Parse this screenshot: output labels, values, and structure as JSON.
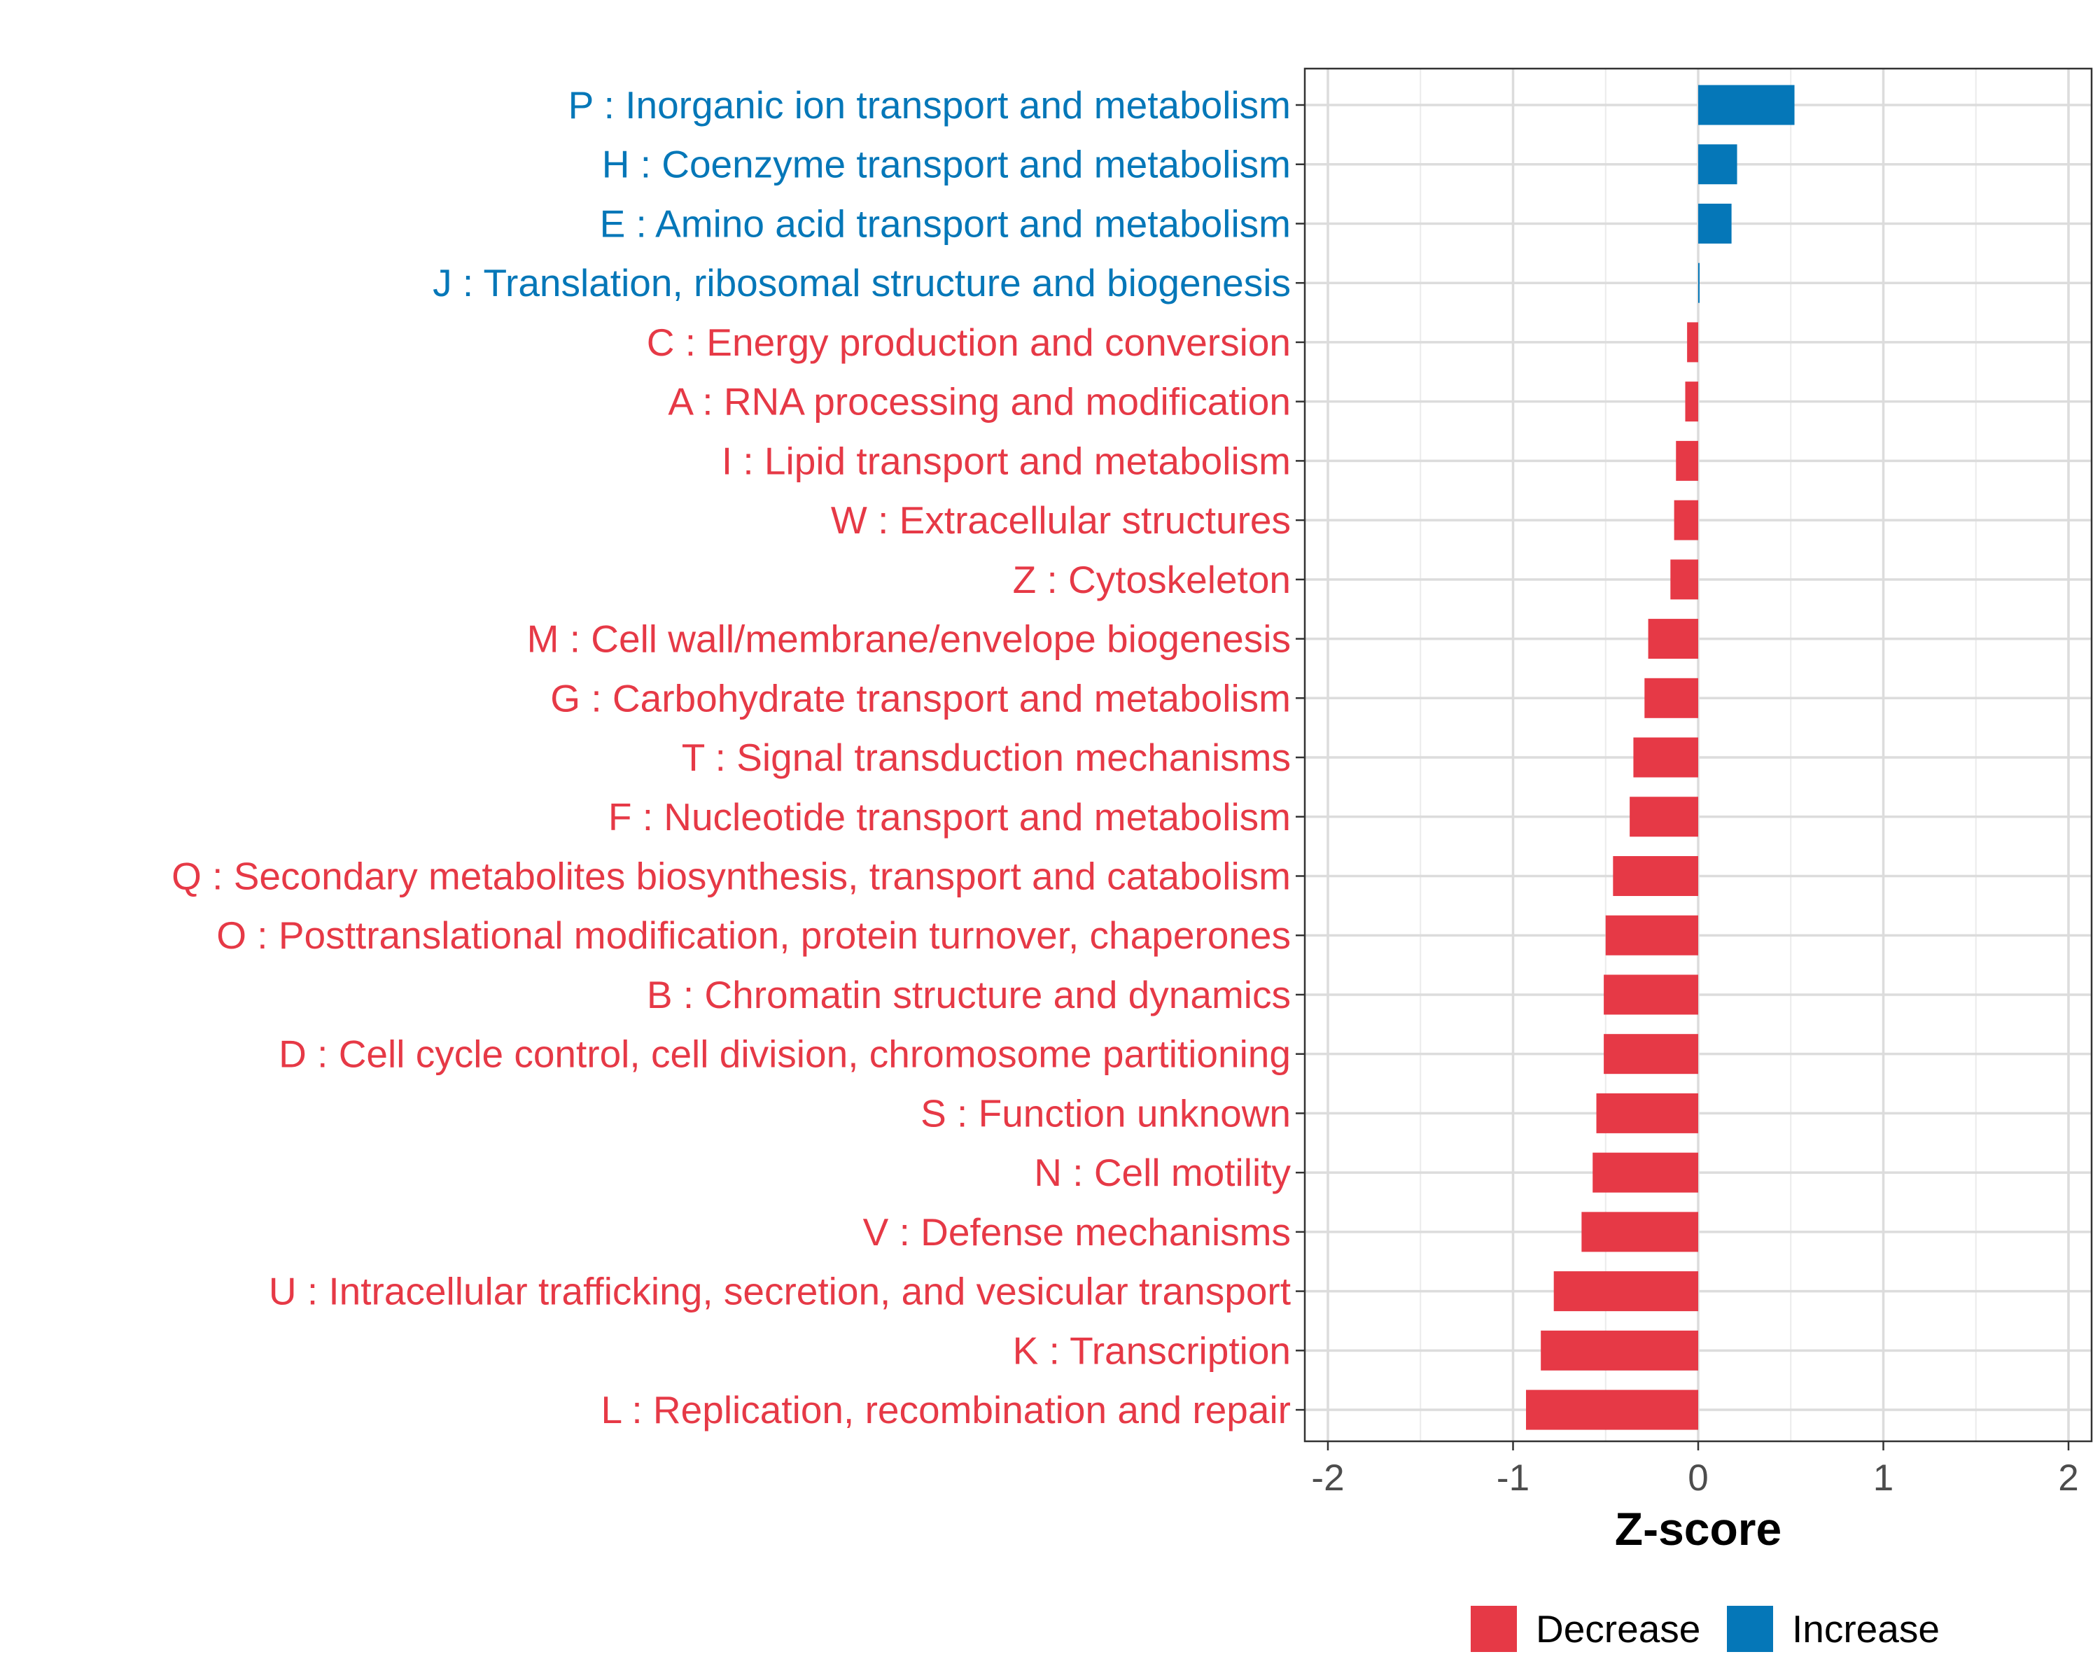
{
  "chart_data": {
    "type": "bar",
    "orientation": "horizontal",
    "title": "",
    "xlabel": "Z-score",
    "ylabel": "",
    "xlim": [
      -2.1,
      2.1
    ],
    "xticks": [
      -2,
      -1,
      0,
      1,
      2
    ],
    "xtick_labels": [
      "-2",
      "-1",
      "0",
      "1",
      "2"
    ],
    "grid": true,
    "legend_position": "bottom",
    "colors": {
      "Decrease": "#e63946",
      "Increase": "#0577b8"
    },
    "legend": [
      {
        "name": "Decrease",
        "color": "#e63946"
      },
      {
        "name": "Increase",
        "color": "#0577b8"
      }
    ],
    "categories": [
      "P : Inorganic ion transport and metabolism",
      "H : Coenzyme transport and metabolism",
      "E : Amino acid transport and metabolism",
      "J : Translation, ribosomal structure and biogenesis",
      "C : Energy production and conversion",
      "A : RNA processing and modification",
      "I : Lipid transport and metabolism",
      "W : Extracellular structures",
      "Z : Cytoskeleton",
      "M : Cell wall/membrane/envelope biogenesis",
      "G : Carbohydrate transport and metabolism",
      "T : Signal transduction mechanisms",
      "F : Nucleotide transport and metabolism",
      "Q : Secondary metabolites biosynthesis, transport and catabolism",
      "O : Posttranslational modification, protein turnover, chaperones",
      "B : Chromatin structure and dynamics",
      "D : Cell cycle control, cell division, chromosome partitioning",
      "S : Function unknown",
      "N : Cell motility",
      "V : Defense mechanisms",
      "U : Intracellular trafficking, secretion, and vesicular transport",
      "K : Transcription",
      "L : Replication, recombination and repair"
    ],
    "values": [
      0.52,
      0.21,
      0.18,
      0.005,
      -0.06,
      -0.07,
      -0.12,
      -0.13,
      -0.15,
      -0.27,
      -0.29,
      -0.35,
      -0.37,
      -0.46,
      -0.5,
      -0.51,
      -0.51,
      -0.55,
      -0.57,
      -0.63,
      -0.78,
      -0.85,
      -0.93
    ],
    "groups": [
      "Increase",
      "Increase",
      "Increase",
      "Increase",
      "Decrease",
      "Decrease",
      "Decrease",
      "Decrease",
      "Decrease",
      "Decrease",
      "Decrease",
      "Decrease",
      "Decrease",
      "Decrease",
      "Decrease",
      "Decrease",
      "Decrease",
      "Decrease",
      "Decrease",
      "Decrease",
      "Decrease",
      "Decrease",
      "Decrease"
    ]
  }
}
